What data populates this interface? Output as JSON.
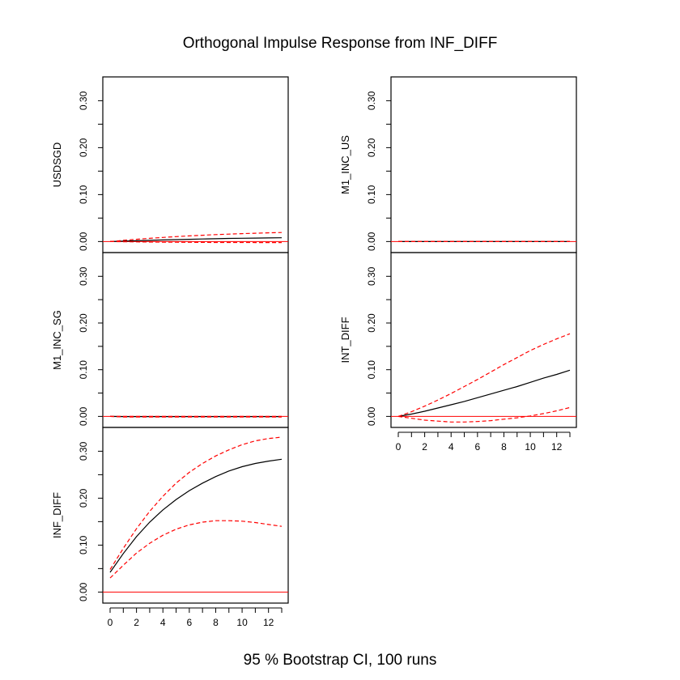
{
  "title": "Orthogonal Impulse Response from INF_DIFF",
  "footer": "95 % Bootstrap CI,  100 runs",
  "colors": {
    "response": "#000000",
    "bounds": "#ff0000",
    "zero_line": "#ff0000",
    "frame": "#000000"
  },
  "chart_data": {
    "type": "line",
    "grid": false,
    "line_styles": {
      "response": "solid black",
      "lower": "dashed red",
      "upper": "dashed red",
      "zero": "solid red"
    },
    "x": [
      0,
      1,
      2,
      3,
      4,
      5,
      6,
      7,
      8,
      9,
      10,
      11,
      12,
      13
    ],
    "xlim": [
      0,
      13
    ],
    "ylim": [
      -0.008,
      0.33
    ],
    "x_ticks": [
      0,
      1,
      2,
      3,
      4,
      5,
      6,
      7,
      8,
      9,
      10,
      11,
      12,
      13
    ],
    "x_tick_labels": [
      "0",
      "2",
      "4",
      "6",
      "8",
      "10",
      "12"
    ],
    "y_ticks": [
      0,
      0.05,
      0.1,
      0.15,
      0.2,
      0.25,
      0.3
    ],
    "y_tick_labels": [
      "0.00",
      "0.10",
      "0.20",
      "0.30"
    ],
    "panels": [
      {
        "ylabel": "USDSGD",
        "series": [
          {
            "role": "response",
            "values": [
              0.0,
              0.0008,
              0.0016,
              0.0025,
              0.0033,
              0.004,
              0.0048,
              0.0055,
              0.006,
              0.0066,
              0.007,
              0.0074,
              0.0077,
              0.008
            ]
          },
          {
            "role": "upper",
            "values": [
              0.0,
              0.0025,
              0.0048,
              0.0068,
              0.0087,
              0.0105,
              0.012,
              0.0134,
              0.0147,
              0.0158,
              0.0168,
              0.0177,
              0.0185,
              0.0192
            ]
          },
          {
            "role": "lower",
            "values": [
              0.0,
              -0.0004,
              -0.0008,
              -0.0011,
              -0.0013,
              -0.0015,
              -0.0017,
              -0.0018,
              -0.0019,
              -0.002,
              -0.002,
              -0.0021,
              -0.0021,
              -0.0021
            ]
          }
        ]
      },
      {
        "ylabel": "M1_INC_US",
        "series": [
          {
            "role": "response",
            "values": [
              0,
              0,
              0,
              0,
              0,
              0,
              0,
              0,
              0,
              0,
              0,
              0,
              0,
              0
            ]
          },
          {
            "role": "upper",
            "values": [
              0,
              0,
              0,
              0,
              0,
              0,
              0,
              0,
              0,
              0,
              0,
              0,
              0,
              0
            ]
          },
          {
            "role": "lower",
            "values": [
              0,
              0,
              0,
              0,
              0,
              0,
              0,
              0,
              0,
              0,
              0,
              0,
              0,
              0
            ]
          }
        ]
      },
      {
        "ylabel": "M1_INC_SG",
        "series": [
          {
            "role": "response",
            "values": [
              0.0,
              -0.0003,
              -0.0004,
              -0.0004,
              -0.0004,
              -0.0004,
              -0.0004,
              -0.0004,
              -0.0004,
              -0.0004,
              -0.0004,
              -0.0004,
              -0.0004,
              -0.0004
            ]
          },
          {
            "role": "upper",
            "values": [
              0.0,
              0.0002,
              0.0002,
              0.0002,
              0.0002,
              0.0002,
              0.0002,
              0.0002,
              0.0002,
              0.0002,
              0.0002,
              0.0002,
              0.0002,
              0.0002
            ]
          },
          {
            "role": "lower",
            "values": [
              0.0,
              -0.0012,
              -0.0014,
              -0.0014,
              -0.0014,
              -0.0014,
              -0.0014,
              -0.0014,
              -0.0014,
              -0.0014,
              -0.0014,
              -0.0014,
              -0.0014,
              -0.0014
            ]
          }
        ]
      },
      {
        "ylabel": "INT_DIFF",
        "series": [
          {
            "role": "response",
            "values": [
              0.0,
              0.005,
              0.011,
              0.018,
              0.025,
              0.032,
              0.04,
              0.048,
              0.056,
              0.064,
              0.073,
              0.082,
              0.09,
              0.099
            ]
          },
          {
            "role": "upper",
            "values": [
              0.0,
              0.01,
              0.022,
              0.035,
              0.049,
              0.064,
              0.079,
              0.095,
              0.111,
              0.126,
              0.141,
              0.154,
              0.166,
              0.177
            ]
          },
          {
            "role": "lower",
            "values": [
              0.0,
              -0.004,
              -0.008,
              -0.01,
              -0.012,
              -0.012,
              -0.011,
              -0.009,
              -0.006,
              -0.003,
              0.001,
              0.006,
              0.012,
              0.019
            ]
          }
        ]
      },
      {
        "ylabel": "INF_DIFF",
        "series": [
          {
            "role": "response",
            "values": [
              0.042,
              0.082,
              0.118,
              0.149,
              0.175,
              0.197,
              0.216,
              0.232,
              0.246,
              0.258,
              0.267,
              0.274,
              0.279,
              0.283
            ]
          },
          {
            "role": "upper",
            "values": [
              0.048,
              0.093,
              0.135,
              0.172,
              0.204,
              0.232,
              0.255,
              0.274,
              0.29,
              0.303,
              0.314,
              0.322,
              0.327,
              0.33
            ]
          },
          {
            "role": "lower",
            "values": [
              0.03,
              0.057,
              0.083,
              0.104,
              0.121,
              0.134,
              0.143,
              0.149,
              0.152,
              0.152,
              0.151,
              0.148,
              0.144,
              0.14
            ]
          }
        ]
      }
    ]
  }
}
